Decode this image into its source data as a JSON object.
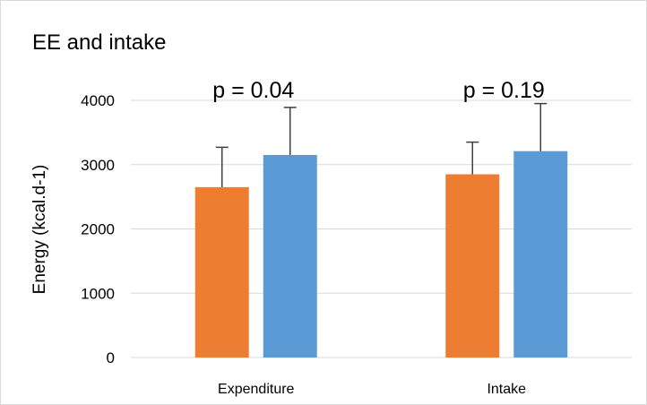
{
  "chart_data": {
    "type": "bar",
    "title": "EE and intake",
    "xlabel": "",
    "ylabel": "Energy (kcal.d-1)",
    "ylim": [
      0,
      4000
    ],
    "yticks": [
      0,
      1000,
      2000,
      3000,
      4000
    ],
    "ytick_labels": [
      "0",
      "1000",
      "2000",
      "3000",
      "4000"
    ],
    "grid": true,
    "legend": "none",
    "categories": [
      "Expenditure",
      "Intake"
    ],
    "series": [
      {
        "color": "#ed7d31",
        "values": [
          2650,
          2850
        ],
        "errors": [
          620,
          500
        ]
      },
      {
        "color": "#5b9bd5",
        "values": [
          3150,
          3210
        ],
        "errors": [
          740,
          740
        ]
      }
    ],
    "annotations": [
      "p = 0.04",
      "p = 0.19"
    ]
  },
  "colors": {
    "gridline": "#d9d9d9",
    "error_bar": "#404040"
  }
}
